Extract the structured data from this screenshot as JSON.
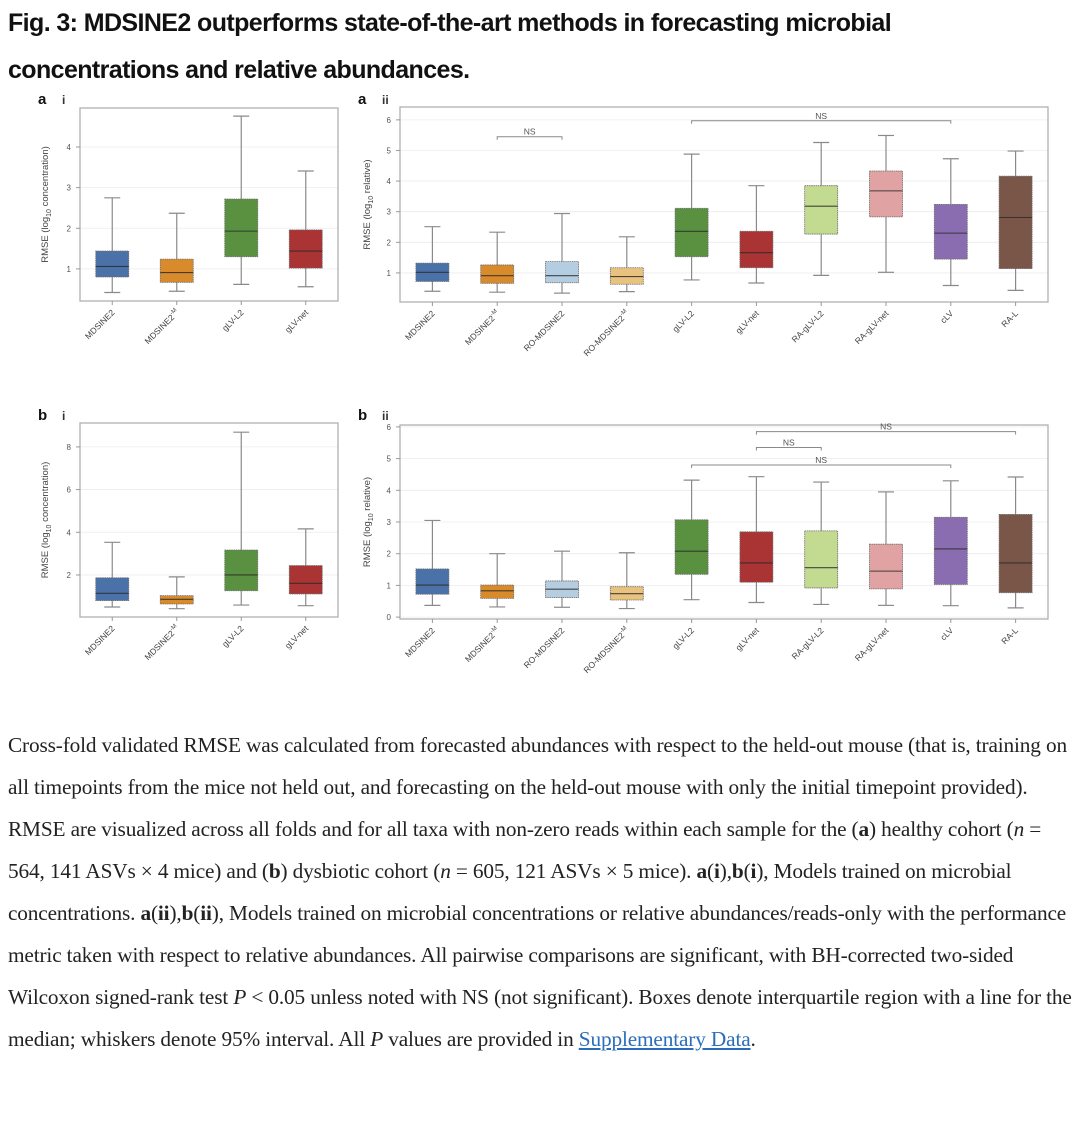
{
  "figure": {
    "title_line1": "Fig. 3: MDSINE2 outperforms state-of-the-art methods in forecasting microbial",
    "title_line2": "concentrations and relative abundances."
  },
  "colors": {
    "MDSINE2": "#4a72a8",
    "MDSINE2^-M": "#d98a2b",
    "RO-MDSINE2": "#b5cde0",
    "RO-MDSINE2^-M": "#e8c27e",
    "gLV-L2": "#5a9140",
    "gLV-net": "#aa3333",
    "RA-gLV-L2": "#c2db90",
    "RA-gLV-net": "#e0a2a2",
    "cLV": "#8a6db0",
    "RA-L": "#7a5649"
  },
  "chart_data": [
    {
      "id": "a-i",
      "panel_letter": "a",
      "panel_numeral": "i",
      "type": "box",
      "ylabel": "RMSE (log10 concentration)",
      "ylabel_main": "RMSE (log",
      "ylabel_sub": "10",
      "ylabel_end": " concentration)",
      "ylim": [
        0.21,
        4.96
      ],
      "yticks": [
        1,
        2,
        3,
        4
      ],
      "grid": true,
      "categories": [
        "MDSINE2",
        "MDSINE2^-M",
        "gLV-L2",
        "gLV-net"
      ],
      "boxes": [
        {
          "name": "MDSINE2",
          "whislo": 0.42,
          "q1": 0.8,
          "med": 1.06,
          "q3": 1.44,
          "whishi": 2.75
        },
        {
          "name": "MDSINE2^-M",
          "whislo": 0.45,
          "q1": 0.67,
          "med": 0.91,
          "q3": 1.24,
          "whishi": 2.37
        },
        {
          "name": "gLV-L2",
          "whislo": 0.62,
          "q1": 1.3,
          "med": 1.93,
          "q3": 2.72,
          "whishi": 4.76
        },
        {
          "name": "gLV-net",
          "whislo": 0.56,
          "q1": 1.02,
          "med": 1.44,
          "q3": 1.96,
          "whishi": 3.41
        }
      ],
      "annotations": []
    },
    {
      "id": "a-ii",
      "panel_letter": "a",
      "panel_numeral": "ii",
      "type": "box",
      "ylabel": "RMSE (log10 relative)",
      "ylabel_main": "RMSE (log",
      "ylabel_sub": "10",
      "ylabel_end": " relative)",
      "ylim": [
        0.05,
        6.42
      ],
      "yticks": [
        1,
        2,
        3,
        4,
        5,
        6
      ],
      "grid": true,
      "categories": [
        "MDSINE2",
        "MDSINE2^-M",
        "RO-MDSINE2",
        "RO-MDSINE2^-M",
        "gLV-L2",
        "gLV-net",
        "RA-gLV-L2",
        "RA-gLV-net",
        "cLV",
        "RA-L"
      ],
      "boxes": [
        {
          "name": "MDSINE2",
          "whislo": 0.4,
          "q1": 0.72,
          "med": 1.02,
          "q3": 1.32,
          "whishi": 2.51
        },
        {
          "name": "MDSINE2^-M",
          "whislo": 0.37,
          "q1": 0.66,
          "med": 0.91,
          "q3": 1.26,
          "whishi": 2.33
        },
        {
          "name": "RO-MDSINE2",
          "whislo": 0.34,
          "q1": 0.68,
          "med": 0.91,
          "q3": 1.37,
          "whishi": 2.94
        },
        {
          "name": "RO-MDSINE2^-M",
          "whislo": 0.39,
          "q1": 0.63,
          "med": 0.88,
          "q3": 1.17,
          "whishi": 2.18
        },
        {
          "name": "gLV-L2",
          "whislo": 0.77,
          "q1": 1.53,
          "med": 2.36,
          "q3": 3.11,
          "whishi": 4.88
        },
        {
          "name": "gLV-net",
          "whislo": 0.67,
          "q1": 1.17,
          "med": 1.66,
          "q3": 2.36,
          "whishi": 3.85
        },
        {
          "name": "RA-gLV-L2",
          "whislo": 0.92,
          "q1": 2.27,
          "med": 3.18,
          "q3": 3.85,
          "whishi": 5.26
        },
        {
          "name": "RA-gLV-net",
          "whislo": 1.02,
          "q1": 2.83,
          "med": 3.68,
          "q3": 4.33,
          "whishi": 5.49
        },
        {
          "name": "cLV",
          "whislo": 0.59,
          "q1": 1.45,
          "med": 2.3,
          "q3": 3.24,
          "whishi": 4.73
        },
        {
          "name": "RA-L",
          "whislo": 0.43,
          "q1": 1.14,
          "med": 2.81,
          "q3": 4.16,
          "whishi": 4.98
        }
      ],
      "annotations": [
        {
          "label": "NS",
          "from": "MDSINE2^-M",
          "to": "RO-MDSINE2",
          "y": 5.45
        },
        {
          "label": "NS",
          "from": "gLV-L2",
          "to": "cLV",
          "y": 5.97
        }
      ]
    },
    {
      "id": "b-i",
      "panel_letter": "b",
      "panel_numeral": "i",
      "type": "box",
      "ylabel": "RMSE (log10 concentration)",
      "ylabel_main": "RMSE (log",
      "ylabel_sub": "10",
      "ylabel_end": " concentration)",
      "ylim": [
        0.03,
        9.12
      ],
      "yticks": [
        2,
        4,
        6,
        8
      ],
      "grid": true,
      "categories": [
        "MDSINE2",
        "MDSINE2^-M",
        "gLV-L2",
        "gLV-net"
      ],
      "boxes": [
        {
          "name": "MDSINE2",
          "whislo": 0.5,
          "q1": 0.8,
          "med": 1.14,
          "q3": 1.87,
          "whishi": 3.53
        },
        {
          "name": "MDSINE2^-M",
          "whislo": 0.42,
          "q1": 0.64,
          "med": 0.86,
          "q3": 1.03,
          "whishi": 1.91
        },
        {
          "name": "gLV-L2",
          "whislo": 0.59,
          "q1": 1.26,
          "med": 2.0,
          "q3": 3.17,
          "whishi": 8.69
        },
        {
          "name": "gLV-net",
          "whislo": 0.56,
          "q1": 1.11,
          "med": 1.61,
          "q3": 2.44,
          "whishi": 4.16
        }
      ],
      "annotations": []
    },
    {
      "id": "b-ii",
      "panel_letter": "b",
      "panel_numeral": "ii",
      "type": "box",
      "ylabel": "RMSE (log10 relative)",
      "ylabel_main": "RMSE (log",
      "ylabel_sub": "10",
      "ylabel_end": " relative)",
      "ylim": [
        -0.06,
        6.06
      ],
      "yticks": [
        0,
        1,
        2,
        3,
        4,
        5,
        6
      ],
      "grid": true,
      "categories": [
        "MDSINE2",
        "MDSINE2^-M",
        "RO-MDSINE2",
        "RO-MDSINE2^-M",
        "gLV-L2",
        "gLV-net",
        "RA-gLV-L2",
        "RA-gLV-net",
        "cLV",
        "RA-L"
      ],
      "boxes": [
        {
          "name": "MDSINE2",
          "whislo": 0.37,
          "q1": 0.72,
          "med": 1.01,
          "q3": 1.52,
          "whishi": 3.05
        },
        {
          "name": "MDSINE2^-M",
          "whislo": 0.32,
          "q1": 0.59,
          "med": 0.83,
          "q3": 1.01,
          "whishi": 2.0
        },
        {
          "name": "RO-MDSINE2",
          "whislo": 0.31,
          "q1": 0.62,
          "med": 0.88,
          "q3": 1.14,
          "whishi": 2.08
        },
        {
          "name": "RO-MDSINE2^-M",
          "whislo": 0.27,
          "q1": 0.54,
          "med": 0.74,
          "q3": 0.96,
          "whishi": 2.03
        },
        {
          "name": "gLV-L2",
          "whislo": 0.55,
          "q1": 1.35,
          "med": 2.08,
          "q3": 3.07,
          "whishi": 4.32
        },
        {
          "name": "gLV-net",
          "whislo": 0.46,
          "q1": 1.1,
          "med": 1.71,
          "q3": 2.69,
          "whishi": 4.43
        },
        {
          "name": "RA-gLV-L2",
          "whislo": 0.4,
          "q1": 0.92,
          "med": 1.56,
          "q3": 2.72,
          "whishi": 4.26
        },
        {
          "name": "RA-gLV-net",
          "whislo": 0.37,
          "q1": 0.89,
          "med": 1.45,
          "q3": 2.3,
          "whishi": 3.95
        },
        {
          "name": "cLV",
          "whislo": 0.36,
          "q1": 1.03,
          "med": 2.15,
          "q3": 3.15,
          "whishi": 4.3
        },
        {
          "name": "RA-L",
          "whislo": 0.29,
          "q1": 0.77,
          "med": 1.71,
          "q3": 3.24,
          "whishi": 4.42
        }
      ],
      "annotations": [
        {
          "label": "NS",
          "from": "gLV-net",
          "to": "RA-L",
          "y": 5.85
        },
        {
          "label": "NS",
          "from": "gLV-net",
          "to": "RA-gLV-L2",
          "y": 5.35
        },
        {
          "label": "NS",
          "from": "gLV-L2",
          "to": "cLV",
          "y": 4.8
        }
      ]
    }
  ],
  "caption": {
    "segments": [
      {
        "t": "Cross-fold validated RMSE was calculated from forecasted abundances with respect to the held-out mouse (that is, training on all timepoints from the mice not held out, and forecasting on the held-out mouse with only the initial timepoint provided). RMSE are visualized across all folds and for all taxa with non-zero reads within each sample for the ("
      },
      {
        "t": "a",
        "b": true
      },
      {
        "t": ") healthy cohort ("
      },
      {
        "t": "n",
        "i": true
      },
      {
        "t": " = 564, 141 ASVs × 4 mice) and ("
      },
      {
        "t": "b",
        "b": true
      },
      {
        "t": ") dysbiotic cohort ("
      },
      {
        "t": "n",
        "i": true
      },
      {
        "t": " = 605, 121 ASVs × 5 mice). "
      },
      {
        "t": "a",
        "b": true
      },
      {
        "t": "("
      },
      {
        "t": "i",
        "b": true
      },
      {
        "t": "),"
      },
      {
        "t": "b",
        "b": true
      },
      {
        "t": "("
      },
      {
        "t": "i",
        "b": true
      },
      {
        "t": "), Models trained on microbial concentrations. "
      },
      {
        "t": "a",
        "b": true
      },
      {
        "t": "("
      },
      {
        "t": "ii",
        "b": true
      },
      {
        "t": "),"
      },
      {
        "t": "b",
        "b": true
      },
      {
        "t": "("
      },
      {
        "t": "ii",
        "b": true
      },
      {
        "t": "), Models trained on microbial concentrations or relative abundances/reads-only with the performance metric taken with respect to relative abundances. All pairwise comparisons are significant, with BH-corrected two-sided Wilcoxon signed-rank test "
      },
      {
        "t": "P",
        "i": true
      },
      {
        "t": " < 0.05 unless noted with NS (not significant). Boxes denote interquartile region with a line for the median; whiskers denote 95% interval. All "
      },
      {
        "t": "P",
        "i": true
      },
      {
        "t": " values are provided in "
      },
      {
        "t": "Supplementary Data",
        "link": true
      },
      {
        "t": "."
      }
    ]
  }
}
